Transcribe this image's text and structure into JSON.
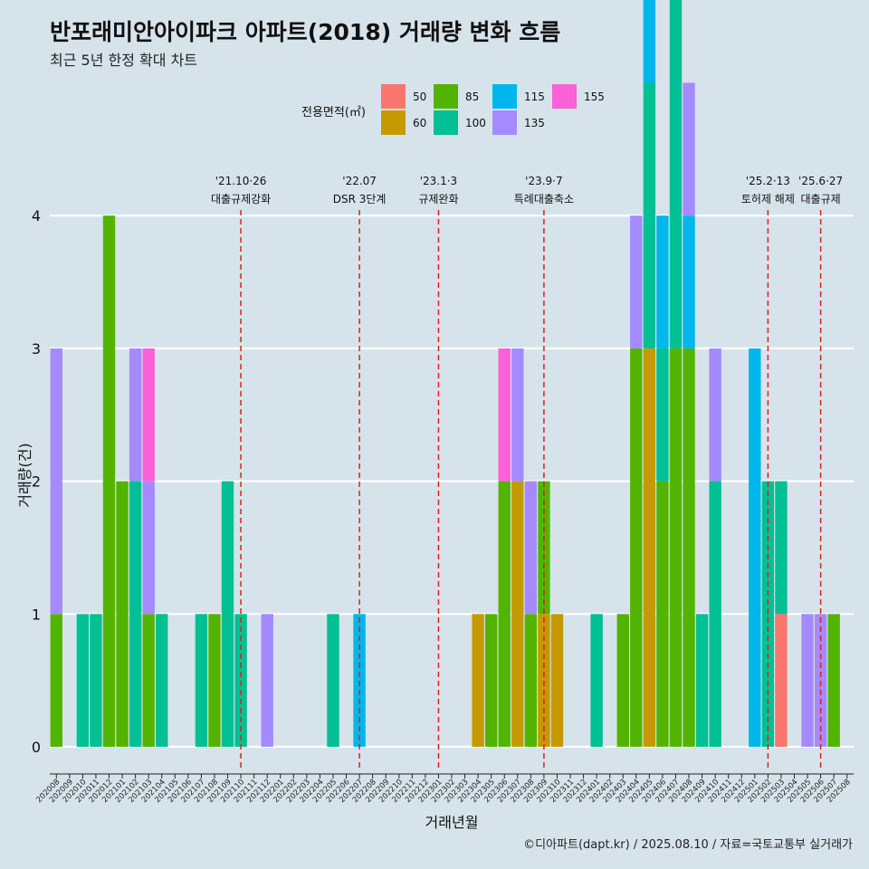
{
  "title": "반포래미안아이파크 아파트(2018) 거래량 변화 흐름",
  "subtitle": "최근 5년 한정 확대 차트",
  "caption": "©디아파트(dapt.kr) / 2025.08.10 / 자료=국토교통부 실거래가",
  "chart_data": {
    "type": "bar",
    "xlabel": "거래년월",
    "ylabel": "거래량(건)",
    "ylim": [
      0,
      4
    ],
    "yticks": [
      0,
      1,
      2,
      3,
      4
    ],
    "grid": true,
    "legend": {
      "title": "전용면적(㎡)",
      "position": "top",
      "entries": [
        {
          "name": "50",
          "color": "#f8766d"
        },
        {
          "name": "60",
          "color": "#c49a00"
        },
        {
          "name": "85",
          "color": "#53b400"
        },
        {
          "name": "100",
          "color": "#00c094"
        },
        {
          "name": "115",
          "color": "#00b6eb"
        },
        {
          "name": "135",
          "color": "#a58aff"
        },
        {
          "name": "155",
          "color": "#fb61d7"
        }
      ]
    },
    "categories": [
      "202008",
      "202009",
      "202010",
      "202011",
      "202012",
      "202101",
      "202102",
      "202103",
      "202104",
      "202105",
      "202106",
      "202107",
      "202108",
      "202109",
      "202110",
      "202111",
      "202112",
      "202201",
      "202202",
      "202203",
      "202204",
      "202205",
      "202206",
      "202207",
      "202208",
      "202209",
      "202210",
      "202211",
      "202212",
      "202301",
      "202302",
      "202303",
      "202304",
      "202305",
      "202306",
      "202307",
      "202308",
      "202309",
      "202310",
      "202311",
      "202312",
      "202401",
      "202402",
      "202403",
      "202404",
      "202405",
      "202406",
      "202407",
      "202408",
      "202409",
      "202410",
      "202411",
      "202412",
      "202501",
      "202502",
      "202503",
      "202504",
      "202505",
      "202506",
      "202507",
      "202508"
    ],
    "series": [
      {
        "name": "50",
        "values": {
          "202503": 1
        }
      },
      {
        "name": "60",
        "values": {
          "202304": 1,
          "202307": 2,
          "202309": 1,
          "202310": 1,
          "202405": 3
        }
      },
      {
        "name": "85",
        "values": {
          "202008": 1,
          "202012": 4,
          "202101": 2,
          "202103": 1,
          "202108": 1,
          "202305": 1,
          "202306": 2,
          "202308": 1,
          "202309": 1,
          "202403": 1,
          "202404": 3,
          "202406": 2,
          "202407": 3,
          "202408": 3,
          "202507": 1
        }
      },
      {
        "name": "100",
        "values": {
          "202010": 1,
          "202011": 1,
          "202102": 2,
          "202104": 1,
          "202107": 1,
          "202109": 2,
          "202110": 1,
          "202205": 1,
          "202401": 1,
          "202405": 2,
          "202406": 1,
          "202407": 3,
          "202409": 1,
          "202410": 2,
          "202502": 2,
          "202503": 1
        }
      },
      {
        "name": "115",
        "values": {
          "202207": 1,
          "202405": 1,
          "202406": 1,
          "202408": 1,
          "202501": 3
        }
      },
      {
        "name": "135",
        "values": {
          "202008": 2,
          "202102": 1,
          "202103": 1,
          "202112": 1,
          "202307": 1,
          "202308": 1,
          "202404": 1,
          "202408": 1,
          "202410": 1,
          "202505": 1,
          "202506": 1
        }
      },
      {
        "name": "155",
        "values": {
          "202103": 1,
          "202306": 1
        }
      }
    ],
    "annotations": [
      {
        "x": "202110",
        "date": "'21.10·26",
        "label": "대출규제강화"
      },
      {
        "x": "202207",
        "date": "'22.07",
        "label": "DSR 3단계"
      },
      {
        "x": "202301",
        "date": "'23.1·3",
        "label": "규제완화"
      },
      {
        "x": "202309",
        "date": "'23.9·7",
        "label": "특례대출축소"
      },
      {
        "x": "202502",
        "date": "'25.2·13",
        "label": "토허제 해제"
      },
      {
        "x": "202506",
        "date": "'25.6·27",
        "label": "대출규제"
      }
    ]
  }
}
